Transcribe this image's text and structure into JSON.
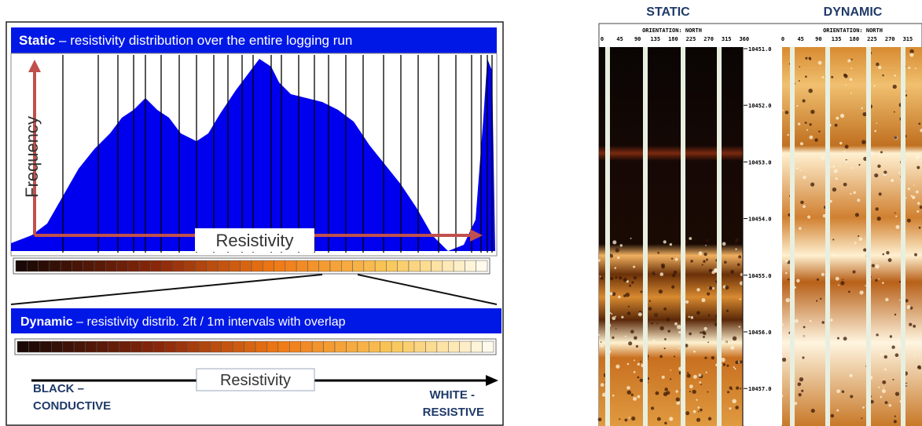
{
  "left": {
    "static_title": {
      "bold": "Static",
      "rest": "– resistivity distribution over the entire logging run"
    },
    "y_label": "Frequency",
    "x_label": "Resistivity",
    "dynamic_title": {
      "bold": "Dynamic",
      "rest": "– resistivity distrib. 2ft / 1m intervals with overlap"
    },
    "axis_label": "Resistivity",
    "left_end": [
      "BLACK –",
      "CONDUCTIVE"
    ],
    "right_end": [
      "WHITE -",
      "RESISTIVE"
    ]
  },
  "right": {
    "static_label": "STATIC",
    "dynamic_label": "DYNAMIC",
    "orientation": "ORIENTATION: NORTH",
    "static_degrees": [
      "0",
      "45",
      "90",
      "135",
      "180",
      "225",
      "270",
      "315",
      "360"
    ],
    "dynamic_degrees": [
      "0",
      "45",
      "90",
      "135",
      "180",
      "225",
      "270",
      "315"
    ],
    "depths": [
      "10451.0",
      "10452.0",
      "10453.0",
      "10454.0",
      "10455.0",
      "10456.0",
      "10457.0"
    ]
  }
}
